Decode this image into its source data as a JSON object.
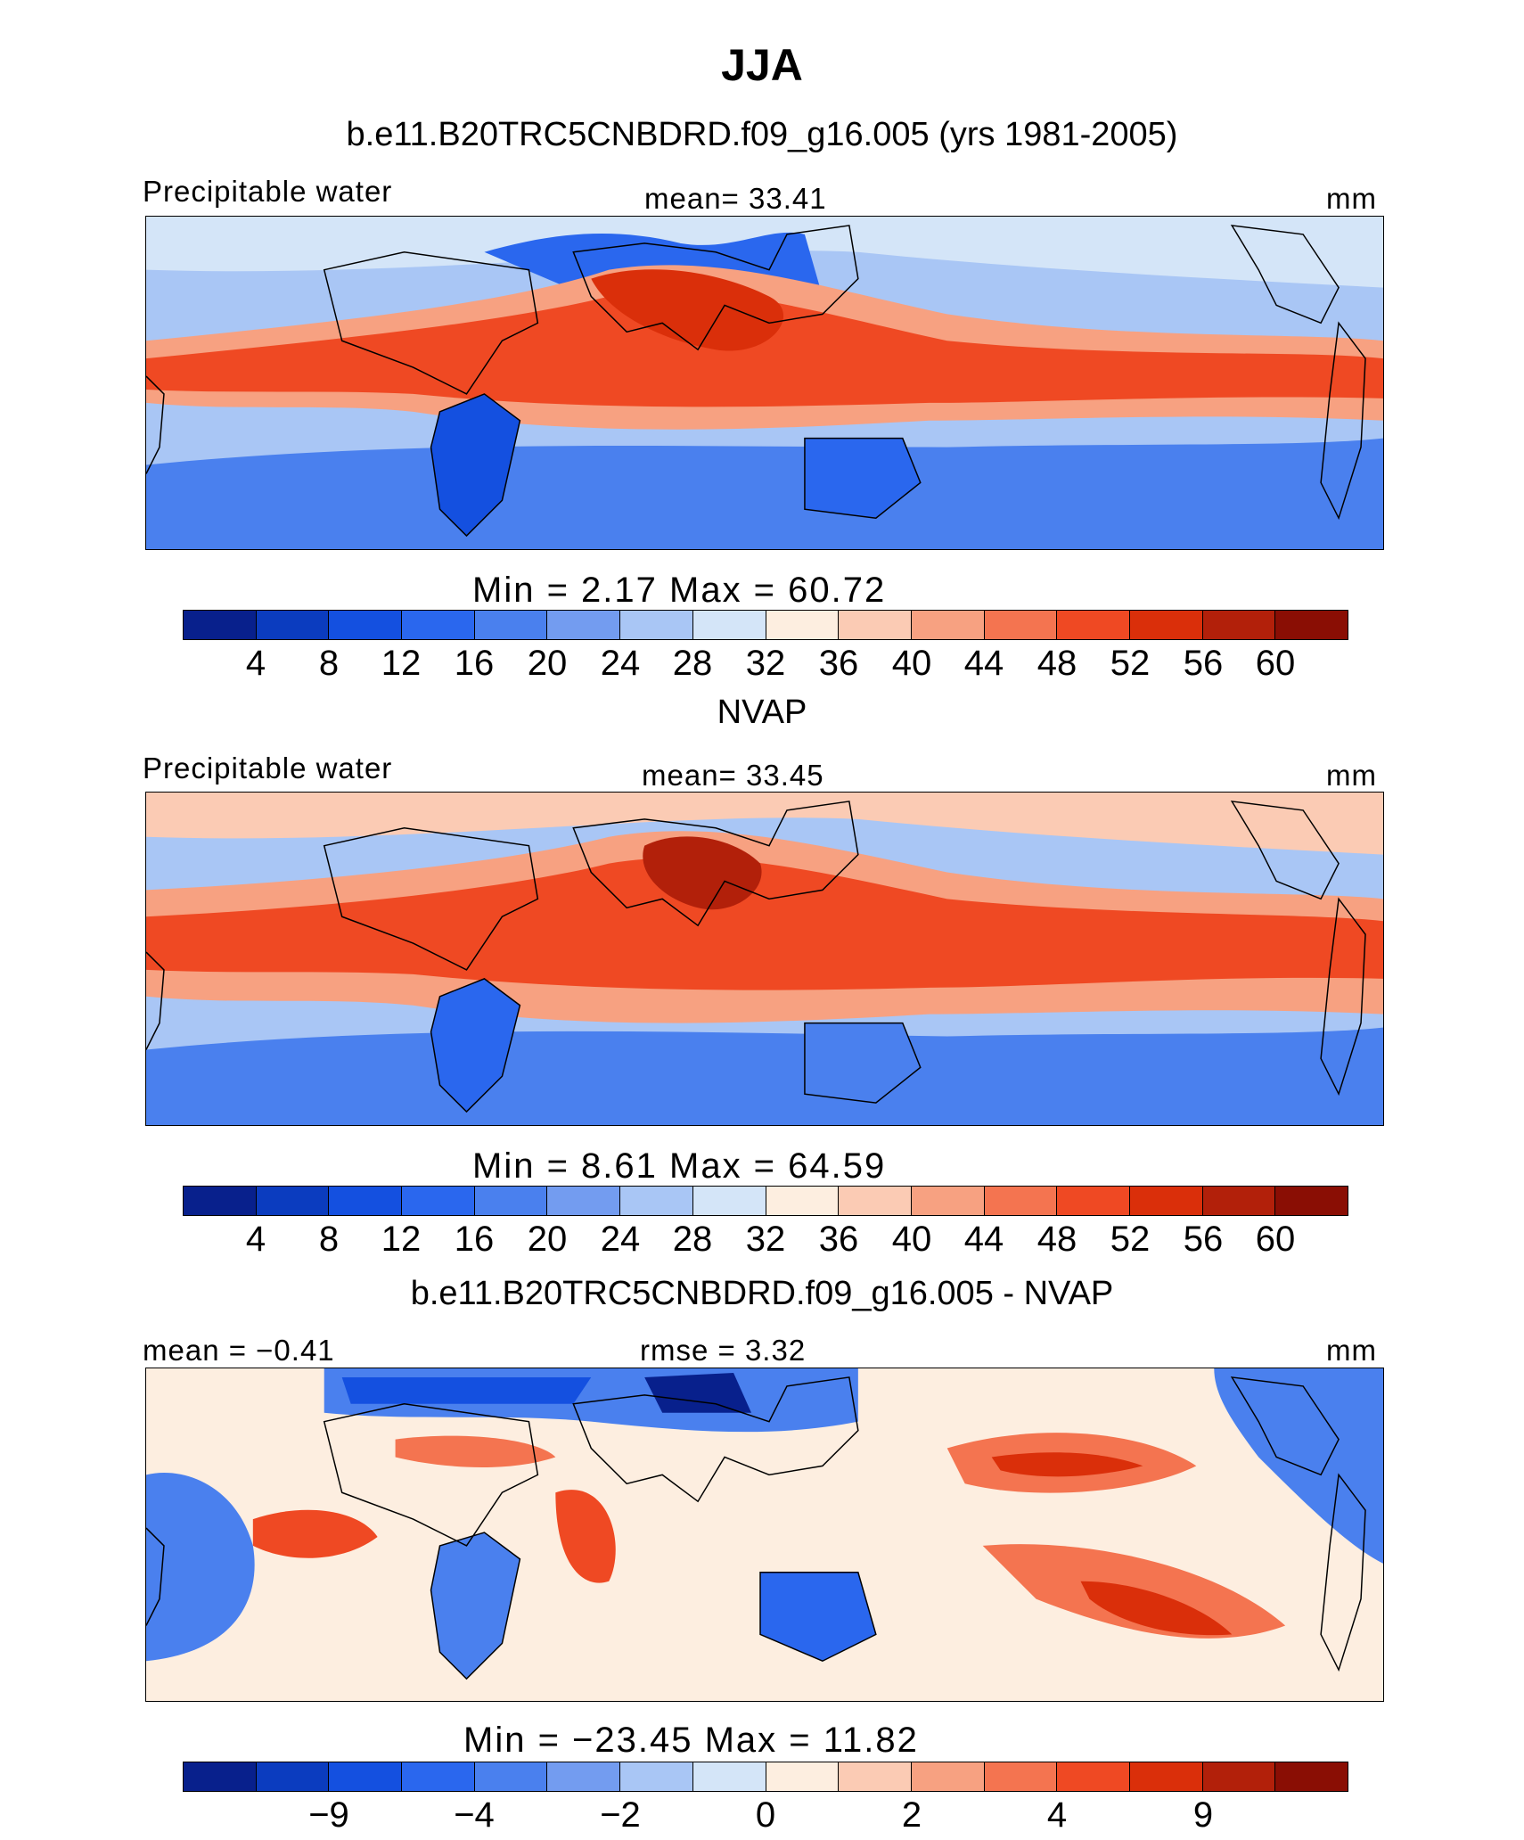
{
  "title": "JJA",
  "palette": [
    "#08208c",
    "#0b3cbf",
    "#1450e0",
    "#2a67ee",
    "#4a80ee",
    "#739cf0",
    "#a9c6f5",
    "#d4e5f8",
    "#fdeee0",
    "#fbcbb4",
    "#f7a181",
    "#f47450",
    "#ef4923",
    "#da2f0a",
    "#b2200a",
    "#8a0e04"
  ],
  "continent_color": "#2f5fd6",
  "land_outline": "#000000",
  "panels": [
    {
      "title": "b.e11.B20TRC5CNBDRD.f09_g16.005 (yrs 1981-2005)",
      "left_label": "Precipitable water",
      "center_label": "mean=  33.41",
      "right_label": "mm",
      "stats": "Min =   2.17 Max =  60.72",
      "ticks": [
        "4",
        "8",
        "12",
        "16",
        "20",
        "24",
        "28",
        "32",
        "36",
        "40",
        "44",
        "48",
        "52",
        "56",
        "60"
      ]
    },
    {
      "title": "NVAP",
      "left_label": "Precipitable water",
      "center_label": "mean=  33.45",
      "right_label": "mm",
      "stats": "Min =   8.61 Max =  64.59",
      "ticks": [
        "4",
        "8",
        "12",
        "16",
        "20",
        "24",
        "28",
        "32",
        "36",
        "40",
        "44",
        "48",
        "52",
        "56",
        "60"
      ]
    },
    {
      "title": "b.e11.B20TRC5CNBDRD.f09_g16.005 - NVAP",
      "left_label": "mean =  −0.41",
      "center_label": "rmse =   3.32",
      "right_label": "mm",
      "stats": "Min = −23.45 Max =  11.82",
      "ticks": [
        "−9",
        "−4",
        "−2",
        "0",
        "2",
        "4",
        "9"
      ]
    }
  ]
}
